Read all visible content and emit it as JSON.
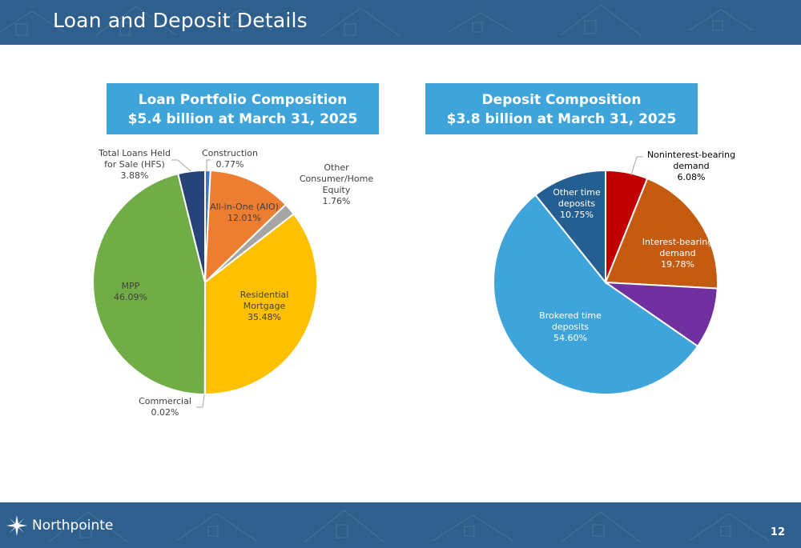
{
  "page": {
    "title": "Loan and Deposit Details",
    "page_number": "12",
    "logo_text": "Northpointe"
  },
  "chart_data": [
    {
      "type": "pie",
      "title": "Loan Portfolio Composition",
      "subtitle": "$5.4 billion at March 31, 2025",
      "slices": [
        {
          "label": [
            "Construction"
          ],
          "value": 0.77,
          "value_label": "0.77%",
          "color": "#4472c4"
        },
        {
          "label": [
            "All-in-One (AIO)"
          ],
          "value": 12.01,
          "value_label": "12.01%",
          "color": "#ed7d31"
        },
        {
          "label": [
            "Other",
            "Consumer/Home",
            "Equity"
          ],
          "value": 1.76,
          "value_label": "1.76%",
          "color": "#a5a5a5"
        },
        {
          "label": [
            "Residential",
            "Mortgage"
          ],
          "value": 35.48,
          "value_label": "35.48%",
          "color": "#ffc000"
        },
        {
          "label": [
            "Commercial"
          ],
          "value": 0.02,
          "value_label": "0.02%",
          "color": "#5b9bd5"
        },
        {
          "label": [
            "MPP"
          ],
          "value": 46.09,
          "value_label": "46.09%",
          "color": "#70ad47"
        },
        {
          "label": [
            "Total Loans Held",
            "for Sale (HFS)"
          ],
          "value": 3.88,
          "value_label": "3.88%",
          "color": "#264478"
        }
      ]
    },
    {
      "type": "pie",
      "title": "Deposit Composition",
      "subtitle": "$3.8 billion at March 31, 2025",
      "slices": [
        {
          "label": [
            "Noninterest-bearing",
            "demand"
          ],
          "value": 6.08,
          "value_label": "6.08%",
          "color": "#c00000"
        },
        {
          "label": [
            "Interest-bearing",
            "demand"
          ],
          "value": 19.78,
          "value_label": "19.78%",
          "color": "#c55a11"
        },
        {
          "label": [],
          "value": 8.79,
          "value_label": "",
          "color": "#7030a0"
        },
        {
          "label": [
            "Brokered time",
            "deposits"
          ],
          "value": 54.6,
          "value_label": "54.60%",
          "color": "#3ea4d9"
        },
        {
          "label": [
            "Other time",
            "deposits"
          ],
          "value": 10.75,
          "value_label": "10.75%",
          "color": "#255e91"
        }
      ]
    }
  ]
}
